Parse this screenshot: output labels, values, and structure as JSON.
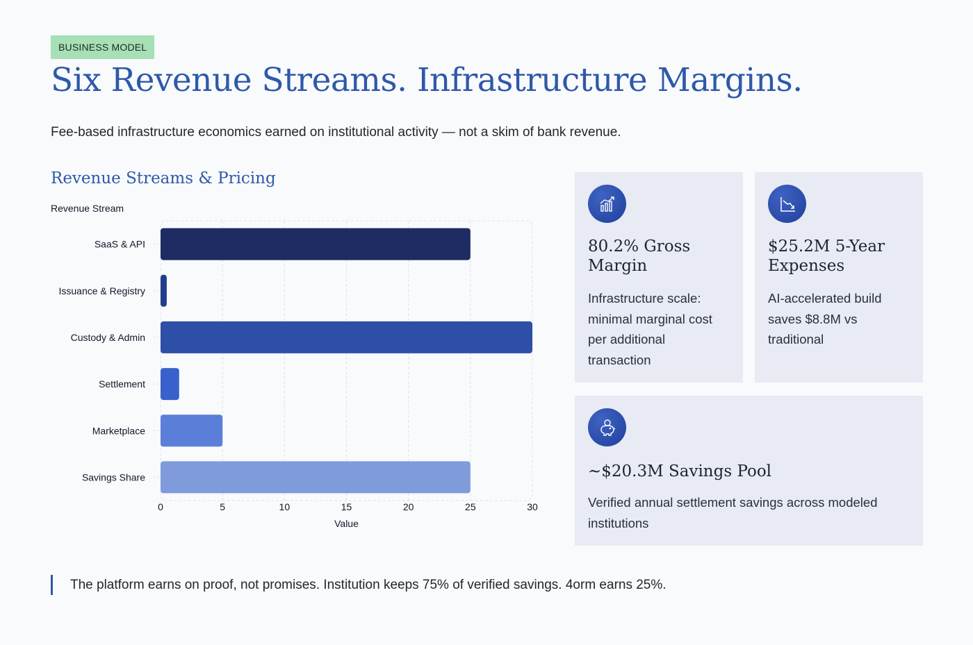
{
  "badge": "BUSINESS MODEL",
  "title": "Six Revenue Streams. Infrastructure Margins.",
  "subtitle": "Fee-based infrastructure economics earned on institutional activity — not a skim of bank revenue.",
  "section_title": "Revenue Streams & Pricing",
  "chart_data": {
    "type": "bar",
    "orientation": "horizontal",
    "ylabel": "Revenue Stream",
    "xlabel": "Value",
    "categories": [
      "SaaS & API",
      "Issuance & Registry",
      "Custody & Admin",
      "Settlement",
      "Marketplace",
      "Savings Share"
    ],
    "values": [
      25,
      0.5,
      30,
      1.5,
      5,
      25
    ],
    "colors": [
      "#1e2c63",
      "#243c8c",
      "#2d4fa6",
      "#3861cb",
      "#5b7fd8",
      "#7f9bdc"
    ],
    "xlim": [
      0,
      30
    ],
    "xticks": [
      0,
      5,
      10,
      15,
      20,
      25,
      30
    ],
    "grid": true
  },
  "cards": [
    {
      "icon": "growth-chart-icon",
      "title": "80.2% Gross Margin",
      "body": "Infrastructure scale: minimal marginal cost per additional transaction"
    },
    {
      "icon": "declining-chart-icon",
      "title": "$25.2M 5-Year Expenses",
      "body": "AI-accelerated build saves $8.8M vs traditional"
    },
    {
      "icon": "piggy-bank-icon",
      "title": "~$20.3M Savings Pool",
      "body": "Verified annual settlement savings across modeled institutions"
    }
  ],
  "quote": "The platform earns on proof, not promises. Institution keeps 75% of verified savings. 4orm earns 25%."
}
